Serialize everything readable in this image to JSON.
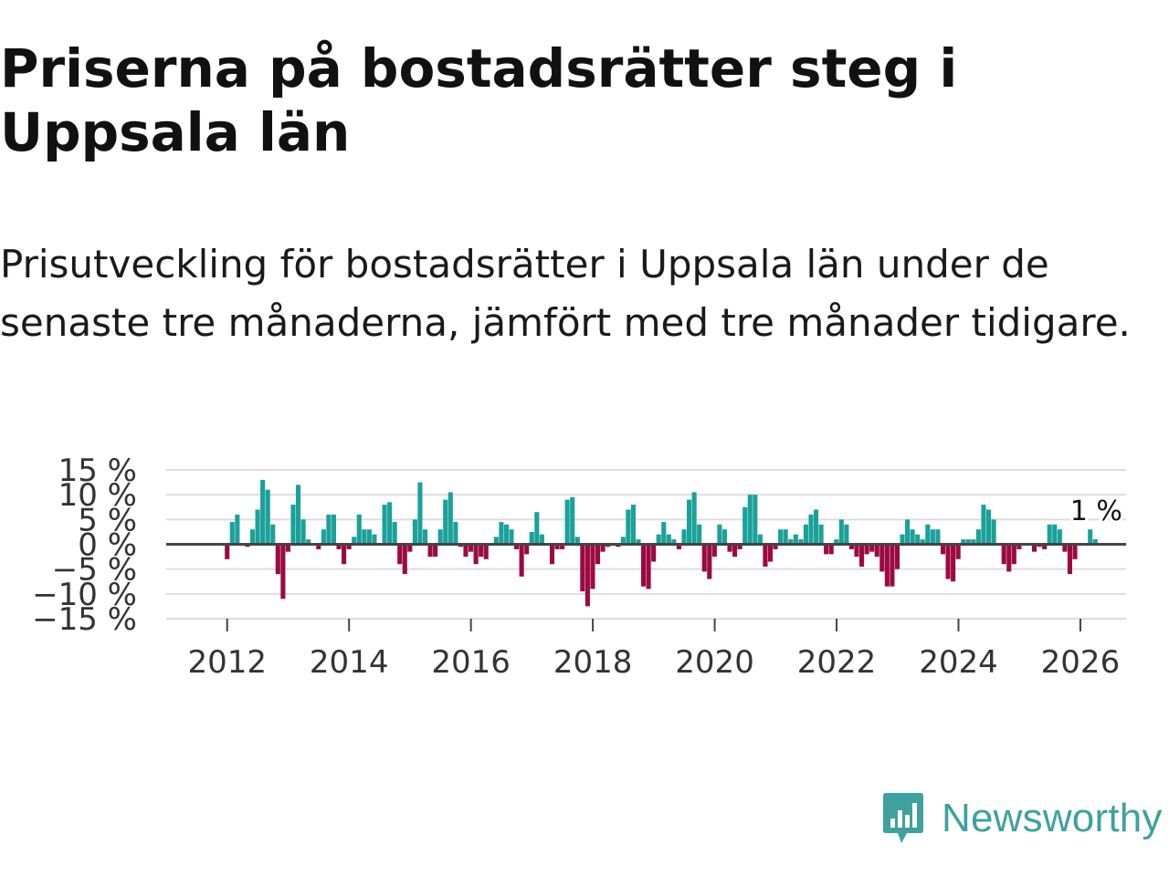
{
  "title": "Priserna på bostadsrätter steg i Uppsala län",
  "subtitle": "Prisutveckling för bostadsrätter i Uppsala län under de senaste tre månaderna, jämfört med tre månader tidigare.",
  "brand": {
    "name": "Newsworthy",
    "color": "#3fa19d",
    "icon": "newsworthy-logo-icon"
  },
  "colors": {
    "positive": "#1aa19a",
    "negative": "#9b0a40",
    "grid": "#dddddd",
    "zero": "#444444",
    "text": "#333333"
  },
  "chart_data": {
    "type": "bar",
    "title": "",
    "xlabel": "",
    "ylabel": "",
    "ylim": [
      -15,
      15
    ],
    "xlim": [
      2011.0,
      2026.75
    ],
    "yticks": [
      15,
      10,
      5,
      0,
      -5,
      -10,
      -15
    ],
    "ytick_labels": [
      "15 %",
      "10 %",
      "5 %",
      "0 %",
      "−5 %",
      "−10 %",
      "−15 %"
    ],
    "xticks": [
      2012,
      2014,
      2016,
      2018,
      2020,
      2022,
      2024,
      2026
    ],
    "xtick_labels": [
      "2012",
      "2014",
      "2016",
      "2018",
      "2020",
      "2022",
      "2024",
      "2026"
    ],
    "annotation": {
      "x": 2026.17,
      "label": "1 %"
    },
    "series": [
      {
        "name": "Prisutveckling",
        "start": 2012.0,
        "step": 0.0833,
        "values": [
          -3,
          4.5,
          6,
          0,
          -0.5,
          3,
          7,
          13,
          11,
          4,
          -6,
          -11,
          -1.5,
          8,
          12,
          5,
          1,
          0,
          -1,
          3,
          6,
          6,
          -1,
          -4,
          -1,
          1.5,
          6,
          3,
          3,
          2,
          0,
          8,
          8.5,
          4.5,
          -4,
          -6,
          -1.5,
          5,
          12.5,
          3,
          -2.5,
          -2.5,
          3,
          9,
          10.5,
          4.5,
          -0.5,
          -2.5,
          -1.5,
          -4,
          -2.5,
          -3,
          0,
          1.5,
          4.5,
          4,
          3,
          -1,
          -6.5,
          -2,
          2.5,
          6.5,
          2,
          0,
          -4,
          -1,
          -1,
          9,
          9.5,
          1.5,
          -9.5,
          -12.5,
          -9,
          -4,
          -1.5,
          -0.5,
          0,
          -0.5,
          1.5,
          7,
          8,
          1,
          -8.5,
          -9,
          -3.5,
          2,
          4.5,
          2,
          1,
          -1,
          3,
          9,
          10.5,
          4,
          -5.5,
          -7,
          -2.5,
          4,
          3,
          -1.5,
          -2.5,
          -1,
          7.5,
          10,
          10,
          2,
          -4.5,
          -3.5,
          -1,
          3,
          3,
          1,
          2,
          1,
          4,
          6,
          7,
          4,
          -2,
          -2,
          1,
          5,
          4,
          -1,
          -2.5,
          -4.5,
          -2,
          -1.5,
          -2.5,
          -5.5,
          -8.5,
          -8.5,
          -5,
          2,
          5,
          3,
          2,
          1,
          4,
          3,
          3,
          -2,
          -7,
          -7.5,
          -3,
          1,
          1,
          1,
          3,
          8,
          7,
          5,
          0,
          -4,
          -5.5,
          -4,
          -1,
          0,
          0,
          -1.5,
          -0.5,
          -1,
          4,
          4,
          3,
          -1.5,
          -6,
          -3,
          0,
          0,
          3,
          1
        ]
      }
    ]
  }
}
